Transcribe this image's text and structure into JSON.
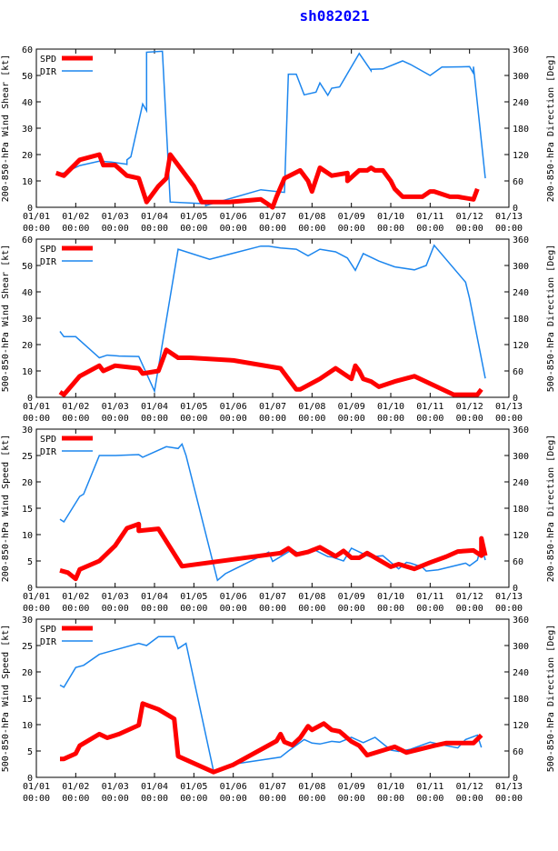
{
  "title": "sh082021",
  "colors": {
    "spd": "#ff0000",
    "dir": "#1c86ee",
    "axis": "#000000"
  },
  "chart_data": [
    {
      "type": "line",
      "ylabel_left": "200-850-hPa Wind Shear [kt]",
      "ylabel_right": "200-850-hPa Direction [Deg]",
      "ylim_left": [
        0,
        60
      ],
      "yticks_left": [
        0,
        10,
        20,
        30,
        40,
        50,
        60
      ],
      "ylim_right": [
        0,
        360
      ],
      "yticks_right": [
        0,
        60,
        120,
        180,
        240,
        300,
        360
      ],
      "xlim": [
        0,
        12
      ],
      "xtick_labels": [
        "01/01",
        "01/02",
        "01/03",
        "01/04",
        "01/05",
        "01/06",
        "01/07",
        "01/08",
        "01/09",
        "01/10",
        "01/11",
        "01/12",
        "01/13"
      ],
      "xtick_sublabel": "00:00",
      "legend": [
        {
          "label": "SPD",
          "key": "spd"
        },
        {
          "label": "DIR",
          "key": "dir"
        }
      ],
      "legend_position": "top-left",
      "spd_x": [
        0.5,
        0.7,
        1.1,
        1.6,
        1.7,
        2.0,
        2.3,
        2.6,
        2.8,
        3.1,
        3.3,
        3.4,
        3.7,
        4.0,
        4.2,
        4.9,
        5.7,
        6.0,
        6.1,
        6.3,
        6.7,
        6.9,
        7.0,
        7.2,
        7.5,
        7.9,
        7.9,
        8.2,
        8.4,
        8.5,
        8.6,
        8.8,
        9.0,
        9.1,
        9.3,
        9.8,
        10.0,
        10.1,
        10.5,
        10.7,
        11.1,
        11.2
      ],
      "spd_y": [
        13,
        12,
        18,
        20,
        16,
        16,
        12,
        11,
        2,
        8,
        11,
        20,
        14,
        8,
        2,
        2,
        3,
        0,
        4,
        11,
        14,
        10,
        6,
        15,
        12,
        13,
        10,
        14,
        14,
        15,
        14,
        14,
        10,
        7,
        4,
        4,
        6,
        6,
        4,
        4,
        3,
        7
      ],
      "dir_x": [
        0.5,
        0.7,
        1.1,
        1.6,
        1.9,
        2.3,
        2.3,
        2.3,
        2.4,
        2.7,
        2.8,
        2.8,
        3.2,
        3.4,
        4.3,
        4.3,
        5.7,
        6.3,
        6.4,
        6.6,
        6.8,
        7.1,
        7.2,
        7.4,
        7.5,
        7.7,
        8.2,
        8.5,
        8.5,
        8.8,
        9.3,
        9.5,
        10.0,
        10.3,
        10.4,
        11.0,
        11.1,
        11.1,
        11.4
      ],
      "dir_y": [
        76,
        78,
        95,
        105,
        103,
        98,
        96,
        108,
        115,
        235,
        220,
        353,
        355,
        12,
        8,
        4,
        40,
        34,
        303,
        303,
        256,
        262,
        283,
        255,
        271,
        274,
        350,
        311,
        314,
        315,
        333,
        325,
        300,
        319,
        319,
        320,
        305,
        320,
        66
      ]
    },
    {
      "type": "line",
      "ylabel_left": "500-850-hPa Wind Shear [kt]",
      "ylabel_right": "500-850-hPa Direction [Deg]",
      "ylim_left": [
        0,
        60
      ],
      "yticks_left": [
        0,
        10,
        20,
        30,
        40,
        50,
        60
      ],
      "ylim_right": [
        0,
        360
      ],
      "yticks_right": [
        0,
        60,
        120,
        180,
        240,
        300,
        360
      ],
      "xlim": [
        0,
        12
      ],
      "xtick_labels": [
        "01/01",
        "01/02",
        "01/03",
        "01/04",
        "01/05",
        "01/06",
        "01/07",
        "01/08",
        "01/09",
        "01/10",
        "01/11",
        "01/12",
        "01/13"
      ],
      "xtick_sublabel": "00:00",
      "legend": [
        {
          "label": "SPD",
          "key": "spd"
        },
        {
          "label": "DIR",
          "key": "dir"
        }
      ],
      "legend_position": "top-left",
      "spd_x": [
        0.6,
        0.7,
        1.1,
        1.6,
        1.7,
        2.0,
        2.6,
        2.7,
        3.1,
        3.3,
        3.6,
        3.9,
        5.0,
        6.2,
        6.6,
        6.7,
        7.2,
        7.6,
        7.9,
        8.0,
        8.1,
        8.2,
        8.3,
        8.5,
        8.7,
        9.1,
        9.6,
        10.6,
        11.2,
        11.3
      ],
      "spd_y": [
        2,
        1,
        8,
        12,
        10,
        12,
        11,
        9,
        10,
        18,
        15,
        15,
        14,
        11,
        3,
        3,
        7,
        11,
        8,
        7,
        12,
        10,
        7,
        6,
        4,
        6,
        8,
        1,
        1,
        3
      ],
      "dir_x": [
        0.6,
        0.7,
        1.0,
        1.6,
        1.8,
        2.1,
        2.6,
        3.0,
        3.6,
        4.4,
        5.7,
        5.9,
        6.2,
        6.6,
        6.9,
        7.2,
        7.6,
        7.9,
        8.1,
        8.3,
        8.7,
        9.1,
        9.6,
        9.9,
        10.1,
        10.9,
        11.0,
        11.4
      ],
      "dir_y": [
        150,
        138,
        138,
        90,
        96,
        94,
        93,
        14,
        337,
        314,
        344,
        344,
        340,
        337,
        322,
        337,
        331,
        317,
        289,
        327,
        310,
        297,
        290,
        300,
        346,
        262,
        225,
        43
      ]
    },
    {
      "type": "line",
      "ylabel_left": "200-850-hPa Wind Speed [kt]",
      "ylabel_right": "200-850-hPa Direction [Deg]",
      "ylim_left": [
        0,
        30
      ],
      "yticks_left": [
        0,
        5,
        10,
        15,
        20,
        25,
        30
      ],
      "ylim_right": [
        0,
        360
      ],
      "yticks_right": [
        0,
        60,
        120,
        180,
        240,
        300,
        360
      ],
      "xlim": [
        0,
        12
      ],
      "xtick_labels": [
        "01/01",
        "01/02",
        "01/03",
        "01/04",
        "01/05",
        "01/06",
        "01/07",
        "01/08",
        "01/09",
        "01/10",
        "01/11",
        "01/12",
        "01/13"
      ],
      "xtick_sublabel": "00:00",
      "legend": [
        {
          "label": "SPD",
          "key": "spd"
        },
        {
          "label": "DIR",
          "key": "dir"
        }
      ],
      "legend_position": "top-left",
      "spd_x": [
        0.6,
        0.8,
        1.0,
        1.1,
        1.6,
        2.0,
        2.3,
        2.6,
        2.6,
        2.7,
        3.1,
        3.7,
        5.1,
        6.2,
        6.4,
        6.6,
        6.9,
        7.2,
        7.6,
        7.8,
        8.0,
        8.2,
        8.4,
        9.0,
        9.2,
        9.6,
        10.0,
        10.4,
        10.7,
        11.1,
        11.3,
        11.3,
        11.4
      ],
      "spd_y": [
        3.2,
        2.8,
        1.6,
        3.4,
        5,
        7.9,
        11.2,
        12,
        10.7,
        10.8,
        11.1,
        4,
        5.4,
        6.5,
        7.4,
        6.2,
        6.7,
        7.6,
        5.9,
        6.9,
        5.6,
        5.6,
        6.5,
        3.9,
        4.4,
        3.5,
        4.7,
        5.8,
        6.8,
        7.0,
        6.0,
        9.3,
        6.0
      ],
      "dir_x": [
        0.6,
        0.7,
        1.1,
        1.2,
        1.6,
        2.0,
        2.6,
        2.7,
        3.3,
        3.6,
        3.7,
        3.8,
        4.6,
        4.8,
        5.9,
        6.0,
        6.5,
        6.7,
        7.0,
        7.4,
        7.5,
        7.8,
        8.0,
        8.4,
        8.5,
        8.8,
        9.0,
        9.2,
        9.4,
        9.5,
        9.8,
        9.9,
        10.2,
        10.9,
        11.0,
        11.2,
        11.3,
        11.4
      ],
      "dir_y": [
        155,
        149,
        207,
        212,
        300,
        300,
        302,
        296,
        320,
        316,
        326,
        300,
        16,
        31,
        80,
        59,
        86,
        75,
        88,
        70,
        69,
        60,
        89,
        72,
        69,
        72,
        57,
        42,
        57,
        55,
        46,
        37,
        40,
        55,
        49,
        62,
        95,
        62
      ]
    },
    {
      "type": "line",
      "ylabel_left": "500-850-hPa Wind Speed [kt]",
      "ylabel_right": "500-850-hPa Direction [Deg]",
      "ylim_left": [
        0,
        30
      ],
      "yticks_left": [
        0,
        5,
        10,
        15,
        20,
        25,
        30
      ],
      "ylim_right": [
        0,
        360
      ],
      "yticks_right": [
        0,
        60,
        120,
        180,
        240,
        300,
        360
      ],
      "xlim": [
        0,
        12
      ],
      "xtick_labels": [
        "01/01",
        "01/02",
        "01/03",
        "01/04",
        "01/05",
        "01/06",
        "01/07",
        "01/08",
        "01/09",
        "01/10",
        "01/11",
        "01/12",
        "01/13"
      ],
      "xtick_sublabel": "00:00",
      "legend": [
        {
          "label": "SPD",
          "key": "spd"
        },
        {
          "label": "DIR",
          "key": "dir"
        }
      ],
      "legend_position": "top-left",
      "spd_x": [
        0.6,
        0.7,
        1.0,
        1.1,
        1.6,
        1.8,
        2.1,
        2.6,
        2.7,
        3.1,
        3.5,
        3.6,
        4.5,
        5.0,
        6.1,
        6.2,
        6.3,
        6.5,
        6.7,
        6.9,
        7.0,
        7.3,
        7.5,
        7.7,
        8.0,
        8.2,
        8.4,
        9.1,
        9.4,
        10.1,
        10.4,
        11.1,
        11.3
      ],
      "spd_y": [
        3.5,
        3.5,
        4.5,
        6,
        8.2,
        7.5,
        8.2,
        9.9,
        14,
        12.9,
        11.1,
        4,
        1,
        2.4,
        6.9,
        8.2,
        6.7,
        6.1,
        7.5,
        9.7,
        9.0,
        10.2,
        9.0,
        8.7,
        6.8,
        6.0,
        4.2,
        5.8,
        4.7,
        6.0,
        6.5,
        6.5,
        8.0
      ],
      "dir_x": [
        0.6,
        0.7,
        1.0,
        1.2,
        1.6,
        2.0,
        2.6,
        2.8,
        3.1,
        3.5,
        3.6,
        3.8,
        4.5,
        5.0,
        6.2,
        6.4,
        6.8,
        7.0,
        7.2,
        7.5,
        7.7,
        8.0,
        8.3,
        8.6,
        9.0,
        9.2,
        9.5,
        10.0,
        10.3,
        10.7,
        10.9,
        11.2,
        11.3
      ],
      "dir_y": [
        210,
        205,
        250,
        255,
        280,
        290,
        305,
        300,
        320,
        320,
        293,
        305,
        14,
        30,
        46,
        60,
        86,
        78,
        76,
        82,
        80,
        91,
        79,
        91,
        62,
        59,
        64,
        80,
        74,
        67,
        86,
        96,
        68
      ]
    }
  ]
}
